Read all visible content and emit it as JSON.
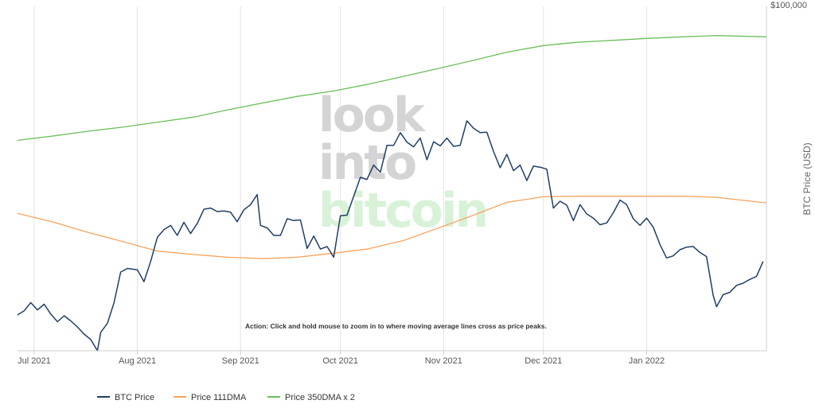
{
  "chart_data": {
    "type": "line",
    "ylabel": "BTC Price (USD)",
    "y_top_label": "$100,000",
    "y_scale": "log",
    "ylim": [
      30000,
      100000
    ],
    "xlim": [
      "2021-06-26",
      "2022-02-06"
    ],
    "x_ticks": [
      {
        "date": "2021-07-01",
        "label": "Jul 2021"
      },
      {
        "date": "2021-08-01",
        "label": "Aug 2021"
      },
      {
        "date": "2021-09-01",
        "label": "Sep 2021"
      },
      {
        "date": "2021-10-01",
        "label": "Oct 2021"
      },
      {
        "date": "2021-11-01",
        "label": "Nov 2021"
      },
      {
        "date": "2021-12-01",
        "label": "Dec 2021"
      },
      {
        "date": "2022-01-01",
        "label": "Jan 2022"
      }
    ],
    "grid": true,
    "annotation": "Action: Click and hold mouse to zoom in to where moving average lines cross as price peaks.",
    "watermark": [
      "look",
      "into",
      "bitcoin"
    ],
    "legend_position": "bottom-left",
    "series": [
      {
        "name": "BTC Price",
        "color": "#1f3f66",
        "x": [
          "2021-06-26",
          "2021-06-28",
          "2021-06-30",
          "2021-07-02",
          "2021-07-04",
          "2021-07-06",
          "2021-07-08",
          "2021-07-10",
          "2021-07-12",
          "2021-07-14",
          "2021-07-16",
          "2021-07-18",
          "2021-07-20",
          "2021-07-21",
          "2021-07-23",
          "2021-07-25",
          "2021-07-27",
          "2021-07-29",
          "2021-08-01",
          "2021-08-03",
          "2021-08-05",
          "2021-08-07",
          "2021-08-09",
          "2021-08-11",
          "2021-08-13",
          "2021-08-15",
          "2021-08-17",
          "2021-08-19",
          "2021-08-21",
          "2021-08-23",
          "2021-08-25",
          "2021-08-27",
          "2021-08-29",
          "2021-08-31",
          "2021-09-02",
          "2021-09-04",
          "2021-09-06",
          "2021-09-07",
          "2021-09-09",
          "2021-09-11",
          "2021-09-13",
          "2021-09-15",
          "2021-09-17",
          "2021-09-19",
          "2021-09-21",
          "2021-09-23",
          "2021-09-25",
          "2021-09-27",
          "2021-09-29",
          "2021-10-01",
          "2021-10-03",
          "2021-10-05",
          "2021-10-07",
          "2021-10-09",
          "2021-10-11",
          "2021-10-13",
          "2021-10-15",
          "2021-10-17",
          "2021-10-19",
          "2021-10-21",
          "2021-10-23",
          "2021-10-25",
          "2021-10-27",
          "2021-10-29",
          "2021-10-31",
          "2021-11-02",
          "2021-11-04",
          "2021-11-06",
          "2021-11-08",
          "2021-11-10",
          "2021-11-12",
          "2021-11-14",
          "2021-11-16",
          "2021-11-18",
          "2021-11-20",
          "2021-11-22",
          "2021-11-24",
          "2021-11-26",
          "2021-11-28",
          "2021-11-30",
          "2021-12-02",
          "2021-12-04",
          "2021-12-06",
          "2021-12-08",
          "2021-12-10",
          "2021-12-12",
          "2021-12-14",
          "2021-12-16",
          "2021-12-18",
          "2021-12-20",
          "2021-12-22",
          "2021-12-24",
          "2021-12-26",
          "2021-12-28",
          "2021-12-30",
          "2022-01-01",
          "2022-01-03",
          "2022-01-05",
          "2022-01-07",
          "2022-01-09",
          "2022-01-11",
          "2022-01-13",
          "2022-01-15",
          "2022-01-17",
          "2022-01-19",
          "2022-01-21",
          "2022-01-22",
          "2022-01-24",
          "2022-01-26",
          "2022-01-28",
          "2022-01-30",
          "2022-02-01",
          "2022-02-03",
          "2022-02-05"
        ],
        "values": [
          34000,
          34500,
          35500,
          34600,
          35300,
          34100,
          33200,
          33900,
          33300,
          32600,
          31800,
          31200,
          30000,
          32000,
          33000,
          35500,
          39500,
          40000,
          39800,
          38200,
          41000,
          44600,
          45800,
          46500,
          44900,
          47000,
          45200,
          46800,
          49200,
          49400,
          48800,
          48900,
          48700,
          47100,
          49100,
          50000,
          51800,
          46500,
          46100,
          44900,
          44900,
          47600,
          47300,
          47400,
          42900,
          44800,
          42800,
          43200,
          41600,
          48100,
          48200,
          51500,
          55000,
          54600,
          57400,
          56000,
          61500,
          61500,
          64300,
          62200,
          61200,
          63100,
          58500,
          62300,
          61400,
          63100,
          61300,
          61500,
          67000,
          65300,
          64300,
          64400,
          60200,
          56900,
          59600,
          56300,
          57400,
          54400,
          57200,
          57000,
          56600,
          49400,
          50600,
          49900,
          47300,
          50000,
          48400,
          47700,
          46600,
          46900,
          48600,
          50800,
          50000,
          47600,
          46500,
          47700,
          46200,
          43500,
          41500,
          41800,
          42700,
          43100,
          43200,
          42300,
          41700,
          36400,
          35000,
          36500,
          36800,
          37700,
          38000,
          38500,
          38900,
          41000
        ]
      },
      {
        "name": "Price 111DMA",
        "color": "#f7a35c",
        "x": [
          "2021-06-26",
          "2021-07-07",
          "2021-07-17",
          "2021-07-28",
          "2021-08-07",
          "2021-08-18",
          "2021-08-28",
          "2021-09-08",
          "2021-09-18",
          "2021-09-29",
          "2021-10-09",
          "2021-10-20",
          "2021-10-30",
          "2021-11-10",
          "2021-11-20",
          "2021-12-01",
          "2021-12-11",
          "2021-12-22",
          "2022-01-01",
          "2022-01-12",
          "2022-01-22",
          "2022-02-06"
        ],
        "values": [
          48500,
          47000,
          45400,
          43900,
          42500,
          42000,
          41600,
          41400,
          41600,
          42200,
          42800,
          44100,
          46000,
          48200,
          50400,
          51400,
          51500,
          51500,
          51500,
          51500,
          51300,
          50300
        ]
      },
      {
        "name": "Price 350DMA x 2",
        "color": "#6bbf5b",
        "x": [
          "2021-06-26",
          "2021-07-07",
          "2021-07-17",
          "2021-07-28",
          "2021-08-07",
          "2021-08-18",
          "2021-08-28",
          "2021-09-08",
          "2021-09-18",
          "2021-09-29",
          "2021-10-09",
          "2021-10-20",
          "2021-10-30",
          "2021-11-10",
          "2021-11-20",
          "2021-12-01",
          "2021-12-11",
          "2021-12-22",
          "2022-01-01",
          "2022-01-12",
          "2022-01-22",
          "2022-02-06"
        ],
        "values": [
          62600,
          63600,
          64600,
          65600,
          66700,
          67900,
          69600,
          71400,
          73000,
          74400,
          76100,
          78300,
          80400,
          82800,
          85200,
          87200,
          88200,
          88800,
          89400,
          89900,
          90300,
          89900
        ]
      }
    ]
  }
}
